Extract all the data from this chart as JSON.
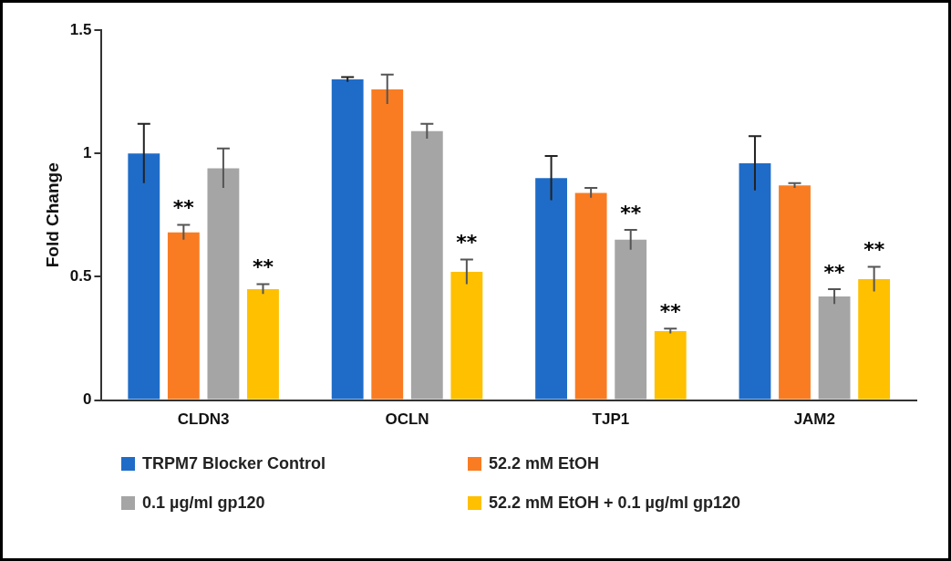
{
  "chart_data": {
    "type": "bar",
    "ylabel": "Fold Change",
    "categories": [
      "CLDN3",
      "OCLN",
      "TJP1",
      "JAM2"
    ],
    "series": [
      {
        "name": "TRPM7 Blocker Control",
        "color": "#1f6cc8",
        "values": [
          1.0,
          1.3,
          0.9,
          0.96
        ],
        "errors": [
          0.12,
          0.01,
          0.09,
          0.11
        ]
      },
      {
        "name": "52.2 mM EtOH",
        "color": "#f97c22",
        "values": [
          0.68,
          1.26,
          0.84,
          0.87
        ],
        "errors": [
          0.03,
          0.06,
          0.02,
          0.01
        ]
      },
      {
        "name": "0.1 µg/ml gp120",
        "color": "#a5a5a5",
        "values": [
          0.94,
          1.09,
          0.65,
          0.42
        ],
        "errors": [
          0.08,
          0.03,
          0.04,
          0.03
        ]
      },
      {
        "name": "52.2 mM EtOH + 0.1 µg/ml gp120",
        "color": "#ffc000",
        "values": [
          0.45,
          0.52,
          0.28,
          0.49
        ],
        "errors": [
          0.02,
          0.05,
          0.01,
          0.05
        ]
      }
    ],
    "ylim": [
      0,
      1.5
    ],
    "yticks": [
      0,
      0.5,
      1,
      1.5
    ],
    "grid": false,
    "legend": "bottom",
    "annotations": [
      {
        "text": "**",
        "x": "CLDN3",
        "y": 0.71
      },
      {
        "text": "**",
        "x": "CLDN3",
        "y": 0.47
      },
      {
        "text": "**",
        "x": "OCLN",
        "y": 0.57
      },
      {
        "text": "**",
        "x": "TJP1",
        "y": 0.69
      },
      {
        "text": "**",
        "x": "TJP1",
        "y": 0.29
      },
      {
        "text": "**",
        "x": "JAM2",
        "y": 0.45
      },
      {
        "text": "**",
        "x": "JAM2",
        "y": 0.54
      }
    ]
  }
}
